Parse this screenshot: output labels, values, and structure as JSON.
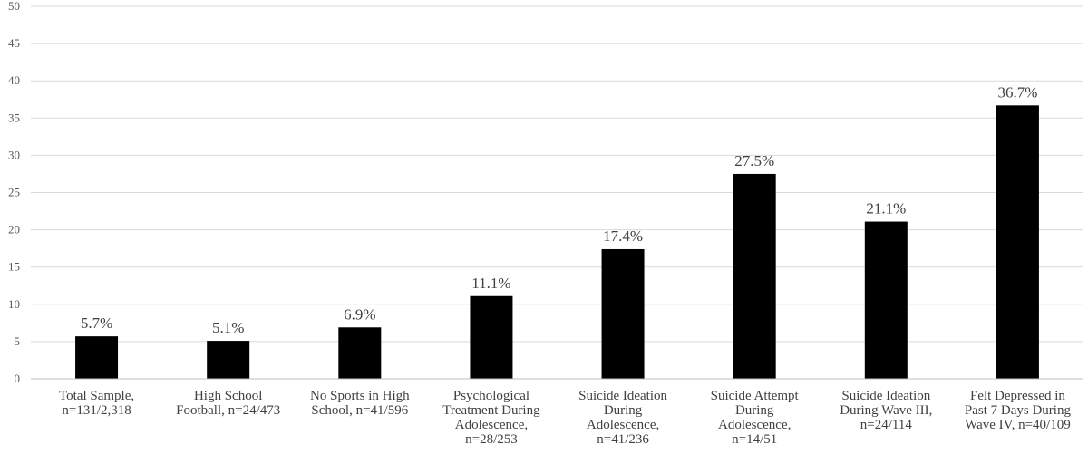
{
  "chart_data": {
    "type": "bar",
    "title": "",
    "xlabel": "",
    "ylabel": "",
    "ylim": [
      0,
      50
    ],
    "yticks": [
      0,
      5,
      10,
      15,
      20,
      25,
      30,
      35,
      40,
      45,
      50
    ],
    "grid": true,
    "bar_color": "#000000",
    "gridline_color": "#d9d9d9",
    "categories": [
      [
        "Total Sample,",
        "n=131/2,318"
      ],
      [
        "High School",
        "Football, n=24/473"
      ],
      [
        "No Sports in High",
        "School, n=41/596"
      ],
      [
        "Psychological",
        "Treatment During",
        "Adolescence,",
        "n=28/253"
      ],
      [
        "Suicide Ideation",
        "During",
        "Adolescence,",
        "n=41/236"
      ],
      [
        "Suicide Attempt",
        "During",
        "Adolescence,",
        "n=14/51"
      ],
      [
        "Suicide Ideation",
        "During Wave III,",
        "n=24/114"
      ],
      [
        "Felt Depressed in",
        "Past 7 Days During",
        "Wave IV, n=40/109"
      ]
    ],
    "values": [
      5.7,
      5.1,
      6.9,
      11.1,
      17.4,
      27.5,
      21.1,
      36.7
    ],
    "data_labels": [
      "5.7%",
      "5.1%",
      "6.9%",
      "11.1%",
      "17.4%",
      "27.5%",
      "21.1%",
      "36.7%"
    ]
  }
}
